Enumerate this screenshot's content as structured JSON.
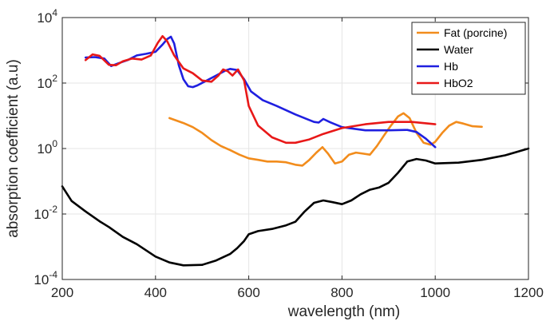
{
  "chart_data": {
    "type": "line",
    "xlabel": "wavelength (nm)",
    "ylabel": "absorption coefficient (a.u)",
    "xlim": [
      200,
      1200
    ],
    "ylim": [
      0.0001,
      10000
    ],
    "yscale": "log",
    "xticks": [
      "200",
      "400",
      "600",
      "800",
      "1000",
      "1200"
    ],
    "yticks": [
      {
        "base": "10",
        "exp": "-4"
      },
      {
        "base": "10",
        "exp": "-2"
      },
      {
        "base": "10",
        "exp": "0"
      },
      {
        "base": "10",
        "exp": "2"
      },
      {
        "base": "10",
        "exp": "4"
      }
    ],
    "grid": true,
    "legend_position": "top-right",
    "series": [
      {
        "name": "Fat (porcine)",
        "color": "#f28c1c",
        "points": [
          [
            430,
            8.5
          ],
          [
            460,
            6.0
          ],
          [
            480,
            4.5
          ],
          [
            500,
            3.0
          ],
          [
            520,
            1.8
          ],
          [
            540,
            1.2
          ],
          [
            560,
            0.9
          ],
          [
            580,
            0.65
          ],
          [
            600,
            0.5
          ],
          [
            620,
            0.45
          ],
          [
            640,
            0.4
          ],
          [
            660,
            0.4
          ],
          [
            680,
            0.38
          ],
          [
            700,
            0.32
          ],
          [
            715,
            0.3
          ],
          [
            730,
            0.45
          ],
          [
            745,
            0.75
          ],
          [
            758,
            1.1
          ],
          [
            770,
            0.7
          ],
          [
            785,
            0.35
          ],
          [
            800,
            0.4
          ],
          [
            815,
            0.65
          ],
          [
            830,
            0.75
          ],
          [
            845,
            0.7
          ],
          [
            860,
            0.65
          ],
          [
            875,
            1.2
          ],
          [
            890,
            2.5
          ],
          [
            905,
            5.0
          ],
          [
            920,
            9.5
          ],
          [
            932,
            12.0
          ],
          [
            945,
            8.5
          ],
          [
            960,
            3.0
          ],
          [
            975,
            1.5
          ],
          [
            990,
            1.3
          ],
          [
            1000,
            1.6
          ],
          [
            1015,
            3.0
          ],
          [
            1030,
            5.0
          ],
          [
            1045,
            6.5
          ],
          [
            1060,
            5.8
          ],
          [
            1080,
            4.8
          ],
          [
            1100,
            4.6
          ]
        ]
      },
      {
        "name": "Water",
        "color": "#000000",
        "points": [
          [
            200,
            0.07
          ],
          [
            220,
            0.025
          ],
          [
            250,
            0.012
          ],
          [
            280,
            0.006
          ],
          [
            300,
            0.004
          ],
          [
            330,
            0.002
          ],
          [
            360,
            0.0012
          ],
          [
            400,
            0.0005
          ],
          [
            430,
            0.00033
          ],
          [
            460,
            0.00027
          ],
          [
            500,
            0.00028
          ],
          [
            530,
            0.00038
          ],
          [
            560,
            0.0006
          ],
          [
            575,
            0.0009
          ],
          [
            590,
            0.0015
          ],
          [
            600,
            0.0024
          ],
          [
            620,
            0.003
          ],
          [
            650,
            0.0035
          ],
          [
            680,
            0.0045
          ],
          [
            700,
            0.0058
          ],
          [
            720,
            0.012
          ],
          [
            740,
            0.022
          ],
          [
            760,
            0.026
          ],
          [
            780,
            0.023
          ],
          [
            800,
            0.02
          ],
          [
            820,
            0.026
          ],
          [
            840,
            0.04
          ],
          [
            860,
            0.055
          ],
          [
            880,
            0.065
          ],
          [
            900,
            0.09
          ],
          [
            920,
            0.18
          ],
          [
            940,
            0.4
          ],
          [
            960,
            0.48
          ],
          [
            980,
            0.43
          ],
          [
            1000,
            0.35
          ],
          [
            1050,
            0.37
          ],
          [
            1100,
            0.45
          ],
          [
            1150,
            0.62
          ],
          [
            1200,
            1.0
          ]
        ]
      },
      {
        "name": "Hb",
        "color": "#1f1fe0",
        "points": [
          [
            250,
            600
          ],
          [
            270,
            620
          ],
          [
            290,
            560
          ],
          [
            305,
            330
          ],
          [
            320,
            400
          ],
          [
            340,
            500
          ],
          [
            360,
            700
          ],
          [
            380,
            780
          ],
          [
            400,
            900
          ],
          [
            415,
            1500
          ],
          [
            425,
            2200
          ],
          [
            433,
            2600
          ],
          [
            440,
            1600
          ],
          [
            450,
            350
          ],
          [
            460,
            130
          ],
          [
            470,
            80
          ],
          [
            480,
            75
          ],
          [
            490,
            85
          ],
          [
            510,
            120
          ],
          [
            530,
            170
          ],
          [
            550,
            240
          ],
          [
            560,
            270
          ],
          [
            575,
            250
          ],
          [
            590,
            130
          ],
          [
            605,
            55
          ],
          [
            630,
            30
          ],
          [
            660,
            20
          ],
          [
            700,
            11
          ],
          [
            740,
            6.5
          ],
          [
            750,
            6.2
          ],
          [
            760,
            8.0
          ],
          [
            775,
            6.3
          ],
          [
            800,
            4.5
          ],
          [
            850,
            3.6
          ],
          [
            900,
            3.6
          ],
          [
            940,
            3.7
          ],
          [
            960,
            3.2
          ],
          [
            980,
            2.0
          ],
          [
            1000,
            1.1
          ]
        ]
      },
      {
        "name": "HbO2",
        "color": "#e81818",
        "points": [
          [
            250,
            500
          ],
          [
            265,
            750
          ],
          [
            280,
            680
          ],
          [
            300,
            360
          ],
          [
            315,
            350
          ],
          [
            330,
            460
          ],
          [
            350,
            560
          ],
          [
            370,
            520
          ],
          [
            390,
            700
          ],
          [
            405,
            1700
          ],
          [
            415,
            2700
          ],
          [
            425,
            1900
          ],
          [
            440,
            700
          ],
          [
            460,
            280
          ],
          [
            480,
            200
          ],
          [
            500,
            120
          ],
          [
            520,
            110
          ],
          [
            535,
            170
          ],
          [
            545,
            260
          ],
          [
            555,
            230
          ],
          [
            565,
            170
          ],
          [
            577,
            260
          ],
          [
            590,
            120
          ],
          [
            600,
            20
          ],
          [
            620,
            5.0
          ],
          [
            650,
            2.2
          ],
          [
            680,
            1.5
          ],
          [
            700,
            1.5
          ],
          [
            730,
            1.9
          ],
          [
            760,
            2.8
          ],
          [
            800,
            4.2
          ],
          [
            850,
            5.5
          ],
          [
            900,
            6.5
          ],
          [
            950,
            6.5
          ],
          [
            1000,
            5.5
          ]
        ]
      }
    ]
  }
}
